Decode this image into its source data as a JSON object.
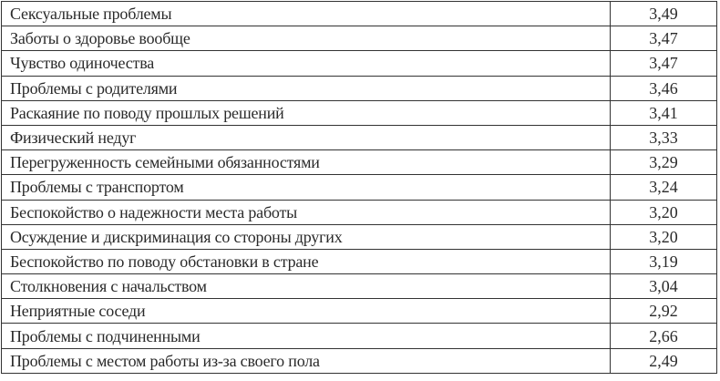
{
  "rows": [
    {
      "label": "Сексуальные проблемы",
      "value": "3,49"
    },
    {
      "label": "Заботы о здоровье вообще",
      "value": "3,47"
    },
    {
      "label": "Чувство одиночества",
      "value": "3,47"
    },
    {
      "label": "Проблемы с родителями",
      "value": "3,46"
    },
    {
      "label": "Раскаяние по поводу прошлых решений",
      "value": "3,41"
    },
    {
      "label": "Физический недуг",
      "value": "3,33"
    },
    {
      "label": "Перегруженность семейными обязанностями",
      "value": "3,29"
    },
    {
      "label": "Проблемы с транспортом",
      "value": "3,24"
    },
    {
      "label": "Беспокойство о надежности места работы",
      "value": "3,20"
    },
    {
      "label": "Осуждение и дискриминация со стороны других",
      "value": "3,20"
    },
    {
      "label": "Беспокойство по поводу обстановки в стране",
      "value": "3,19"
    },
    {
      "label": "Столкновения с начальством",
      "value": "3,04"
    },
    {
      "label": "Неприятные соседи",
      "value": "2,92"
    },
    {
      "label": "Проблемы с подчиненными",
      "value": "2,66"
    },
    {
      "label": "Проблемы с местом работы из-за своего пола",
      "value": "2,49"
    }
  ]
}
